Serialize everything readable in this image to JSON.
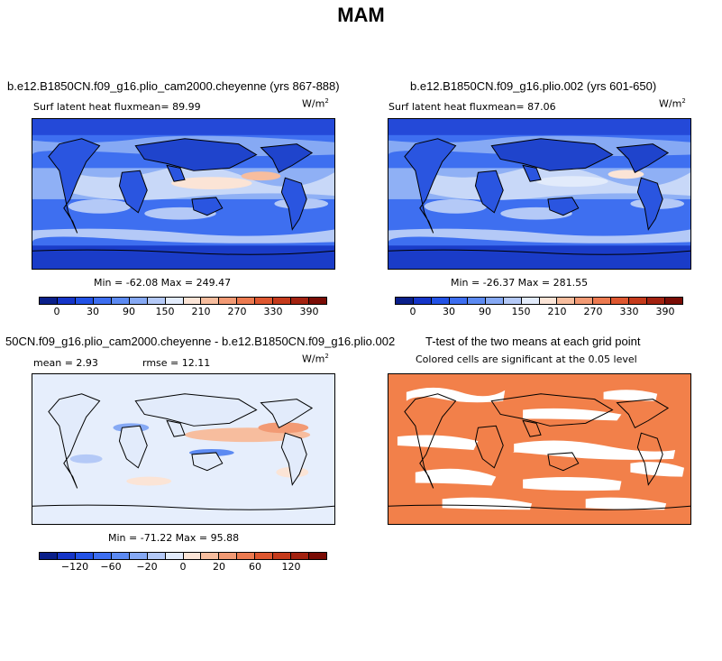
{
  "figure_title": "MAM",
  "panels": [
    {
      "title": "b.e12.B1850CN.f09_g16.plio_cam2000.cheyenne (yrs 867-888)",
      "subtitle": "Surf latent heat fluxmean=  89.99",
      "units": "W/m",
      "units_exp": "2",
      "minmax": "Min = -62.08 Max = 249.47"
    },
    {
      "title": "b.e12.B1850CN.f09_g16.plio.002 (yrs 601-650)",
      "subtitle": "Surf latent heat fluxmean=  87.06",
      "units": "W/m",
      "units_exp": "2",
      "minmax": "Min = -26.37 Max = 281.55"
    },
    {
      "title": "50CN.f09_g16.plio_cam2000.cheyenne - b.e12.B1850CN.f09_g16.plio.002",
      "subtitle_left": "mean =   2.93",
      "subtitle_right": "rmse =  12.11",
      "units": "W/m",
      "units_exp": "2",
      "minmax": "Min = -71.22 Max = 95.88"
    },
    {
      "title": "T-test of the two means at each grid point",
      "subtitle": "Colored cells are significant at the 0.05 level"
    }
  ],
  "colorbars": {
    "abs_labels": [
      "0",
      "30",
      "90",
      "150",
      "210",
      "270",
      "330",
      "390"
    ],
    "diff_labels": [
      "-120",
      "-60",
      "-20",
      "0",
      "20",
      "60",
      "120"
    ],
    "colors": [
      "#0a1f8a",
      "#1535c8",
      "#2252e6",
      "#3d6ef0",
      "#5c8af2",
      "#86a9f4",
      "#b4c9f7",
      "#e2ebfb",
      "#fbe4d6",
      "#f7bd9e",
      "#f29a74",
      "#ec7a50",
      "#de5730",
      "#c53a1b",
      "#a32210",
      "#7a0c05"
    ],
    "ttest_color": "#f2804a"
  },
  "chart_data": [
    {
      "type": "heatmap",
      "title": "b.e12.B1850CN.f09_g16.plio_cam2000.cheyenne (yrs 867-888)",
      "variable": "Surf latent heat flux",
      "units": "W/m2",
      "mean": 89.99,
      "min": -62.08,
      "max": 249.47,
      "colorbar_ticks": [
        0,
        30,
        90,
        150,
        210,
        270,
        330,
        390
      ]
    },
    {
      "type": "heatmap",
      "title": "b.e12.B1850CN.f09_g16.plio.002 (yrs 601-650)",
      "variable": "Surf latent heat flux",
      "units": "W/m2",
      "mean": 87.06,
      "min": -26.37,
      "max": 281.55,
      "colorbar_ticks": [
        0,
        30,
        90,
        150,
        210,
        270,
        330,
        390
      ]
    },
    {
      "type": "heatmap",
      "title": "50CN.f09_g16.plio_cam2000.cheyenne - b.e12.B1850CN.f09_g16.plio.002",
      "units": "W/m2",
      "mean": 2.93,
      "rmse": 12.11,
      "min": -71.22,
      "max": 95.88,
      "colorbar_ticks": [
        -120,
        -60,
        -20,
        0,
        20,
        60,
        120
      ]
    },
    {
      "type": "heatmap",
      "title": "T-test of the two means at each grid point",
      "subtitle": "Colored cells are significant at the 0.05 level",
      "significance_level": 0.05
    }
  ]
}
